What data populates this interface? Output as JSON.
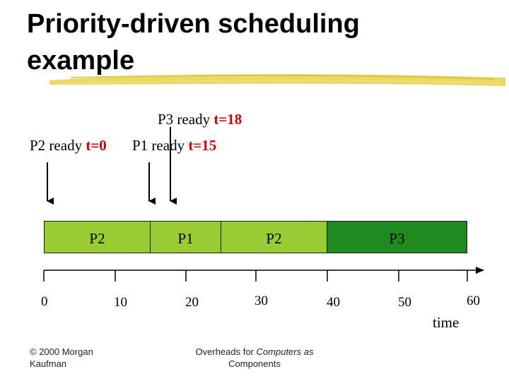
{
  "title_line1": "Priority-driven scheduling",
  "title_line2": "example",
  "events": [
    {
      "label": "P3 ready ",
      "time": "t=18"
    },
    {
      "label": "P2 ready ",
      "time": "t=0"
    },
    {
      "label": "P1 ready ",
      "time": "t=15"
    }
  ],
  "segments": [
    {
      "label": "P2",
      "start": 0,
      "end": 15,
      "color": "#99cc33"
    },
    {
      "label": "P1",
      "start": 15,
      "end": 25,
      "color": "#99cc33"
    },
    {
      "label": "P2",
      "start": 25,
      "end": 40,
      "color": "#99cc33"
    },
    {
      "label": "P3",
      "start": 40,
      "end": 60,
      "color": "#1f8a1f"
    }
  ],
  "axis": {
    "ticks": [
      "0",
      "10",
      "20",
      "30",
      "40",
      "50",
      "60"
    ],
    "label": "time"
  },
  "footer": {
    "left_line1": "© 2000 Morgan",
    "left_line2": "Kaufman",
    "center_line1": "Overheads for ",
    "center_italic": "Computers as",
    "center_line2": "Components"
  }
}
